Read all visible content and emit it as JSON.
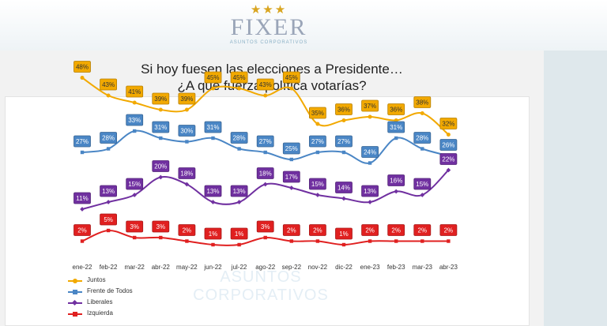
{
  "logo": {
    "word": "FIXER",
    "subtitle": "ASUNTOS CORPORATIVOS",
    "watermark": "ASUNTOS CORPORATIVOS"
  },
  "colors": {
    "juntos": "#f2a900",
    "frente": "#4a86c5",
    "liberales": "#7030a0",
    "izquierda": "#e02020"
  },
  "chart_data": {
    "type": "line",
    "title": "Si hoy fuesen las elecciones a Presidente…",
    "subtitle": "¿A qué fuerza política votarías?",
    "categories": [
      "ene-22",
      "feb-22",
      "mar-22",
      "abr-22",
      "may-22",
      "jun-22",
      "jul-22",
      "ago-22",
      "sep-22",
      "nov-22",
      "dic-22",
      "ene-23",
      "feb-23",
      "mar-23",
      "abr-23"
    ],
    "series": [
      {
        "name": "Juntos",
        "values": [
          48,
          43,
          41,
          39,
          39,
          45,
          45,
          43,
          45,
          35,
          36,
          37,
          36,
          38,
          32
        ]
      },
      {
        "name": "Frente de Todos",
        "values": [
          27,
          28,
          33,
          31,
          30,
          31,
          28,
          27,
          25,
          27,
          27,
          24,
          31,
          28,
          26
        ]
      },
      {
        "name": "Liberales",
        "values": [
          11,
          13,
          15,
          20,
          18,
          13,
          13,
          18,
          17,
          15,
          14,
          13,
          16,
          15,
          22
        ]
      },
      {
        "name": "Izquierda",
        "values": [
          2,
          5,
          3,
          3,
          2,
          1,
          1,
          3,
          2,
          2,
          1,
          2,
          2,
          2,
          2
        ]
      }
    ],
    "legend_position": "bottom-left",
    "grid": false
  }
}
